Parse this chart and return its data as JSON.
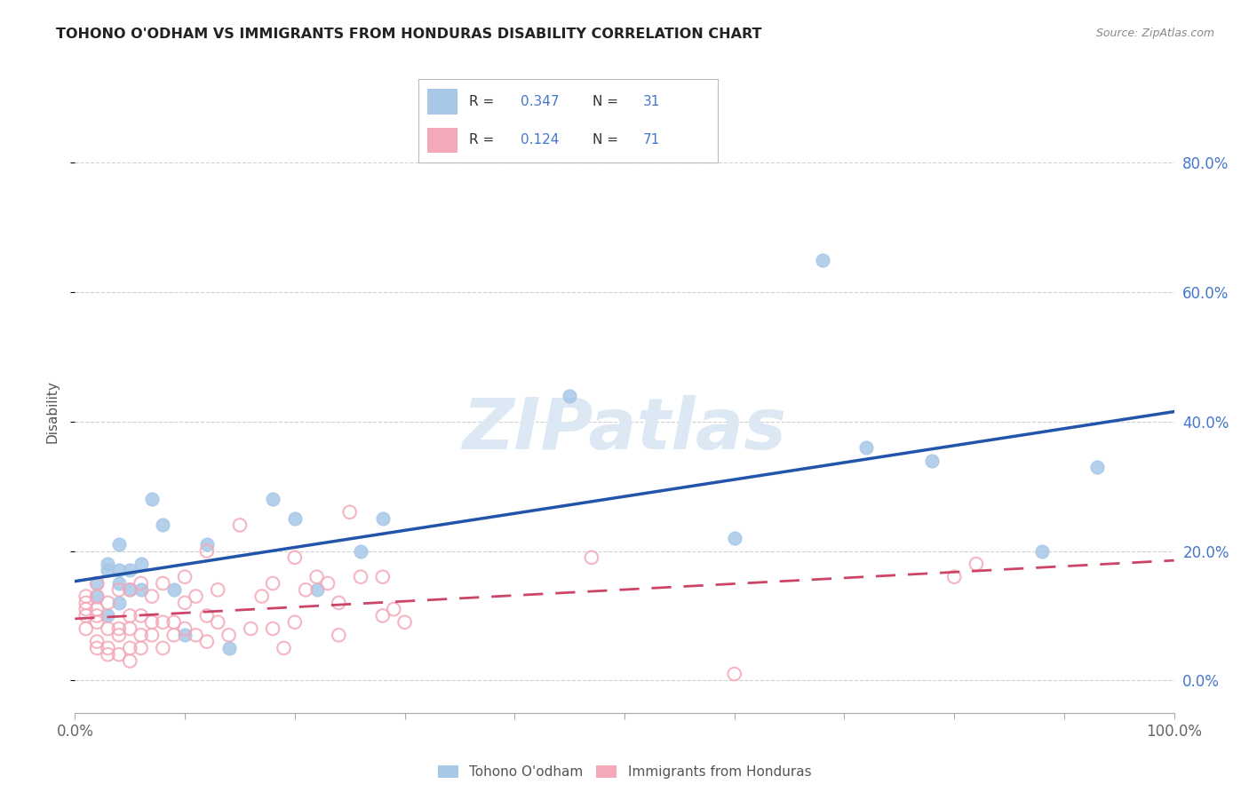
{
  "title": "TOHONO O'ODHAM VS IMMIGRANTS FROM HONDURAS DISABILITY CORRELATION CHART",
  "source": "Source: ZipAtlas.com",
  "ylabel": "Disability",
  "legend1_label": "Tohono O'odham",
  "legend2_label": "Immigrants from Honduras",
  "r1": "0.347",
  "n1": "31",
  "r2": "0.124",
  "n2": "71",
  "blue_color": "#a8c8e8",
  "blue_edge_color": "#a8c8e8",
  "pink_color": "#f4a8b8",
  "pink_edge_color": "#f4a8b8",
  "blue_line_color": "#2255aa",
  "pink_line_color": "#cc4466",
  "axis_label_color": "#4477cc",
  "watermark_color": "#dde8f5",
  "watermark": "ZIPatlas",
  "xlim": [
    0.0,
    1.0
  ],
  "ylim": [
    -0.05,
    0.88
  ],
  "blue_x": [
    0.02,
    0.02,
    0.03,
    0.03,
    0.03,
    0.04,
    0.04,
    0.04,
    0.04,
    0.05,
    0.05,
    0.06,
    0.06,
    0.07,
    0.08,
    0.09,
    0.1,
    0.12,
    0.14,
    0.18,
    0.2,
    0.22,
    0.26,
    0.28,
    0.45,
    0.6,
    0.68,
    0.72,
    0.78,
    0.88,
    0.93
  ],
  "blue_y": [
    0.13,
    0.15,
    0.1,
    0.17,
    0.18,
    0.12,
    0.15,
    0.17,
    0.21,
    0.14,
    0.17,
    0.14,
    0.18,
    0.28,
    0.24,
    0.14,
    0.07,
    0.21,
    0.05,
    0.28,
    0.25,
    0.14,
    0.2,
    0.25,
    0.44,
    0.22,
    0.65,
    0.36,
    0.34,
    0.2,
    0.33
  ],
  "pink_x": [
    0.01,
    0.01,
    0.01,
    0.01,
    0.01,
    0.02,
    0.02,
    0.02,
    0.02,
    0.02,
    0.02,
    0.02,
    0.03,
    0.03,
    0.03,
    0.03,
    0.04,
    0.04,
    0.04,
    0.04,
    0.05,
    0.05,
    0.05,
    0.05,
    0.05,
    0.06,
    0.06,
    0.06,
    0.06,
    0.07,
    0.07,
    0.07,
    0.08,
    0.08,
    0.08,
    0.09,
    0.09,
    0.1,
    0.1,
    0.1,
    0.11,
    0.11,
    0.12,
    0.12,
    0.12,
    0.13,
    0.13,
    0.14,
    0.15,
    0.16,
    0.17,
    0.18,
    0.18,
    0.19,
    0.2,
    0.2,
    0.21,
    0.22,
    0.23,
    0.24,
    0.24,
    0.25,
    0.26,
    0.28,
    0.28,
    0.29,
    0.3,
    0.47,
    0.6,
    0.8,
    0.82
  ],
  "pink_y": [
    0.08,
    0.1,
    0.11,
    0.12,
    0.13,
    0.05,
    0.06,
    0.09,
    0.1,
    0.11,
    0.13,
    0.15,
    0.04,
    0.05,
    0.08,
    0.12,
    0.04,
    0.07,
    0.08,
    0.14,
    0.03,
    0.05,
    0.08,
    0.1,
    0.14,
    0.05,
    0.07,
    0.1,
    0.15,
    0.07,
    0.09,
    0.13,
    0.05,
    0.09,
    0.15,
    0.07,
    0.09,
    0.08,
    0.12,
    0.16,
    0.07,
    0.13,
    0.06,
    0.1,
    0.2,
    0.09,
    0.14,
    0.07,
    0.24,
    0.08,
    0.13,
    0.08,
    0.15,
    0.05,
    0.09,
    0.19,
    0.14,
    0.16,
    0.15,
    0.07,
    0.12,
    0.26,
    0.16,
    0.1,
    0.16,
    0.11,
    0.09,
    0.19,
    0.01,
    0.16,
    0.18
  ],
  "yticks": [
    0.0,
    0.2,
    0.4,
    0.6,
    0.8
  ],
  "ytick_labels": [
    "0.0%",
    "20.0%",
    "40.0%",
    "60.0%",
    "80.0%"
  ],
  "xticks": [
    0.0,
    0.1,
    0.2,
    0.3,
    0.4,
    0.5,
    0.6,
    0.7,
    0.8,
    0.9,
    1.0
  ],
  "xtick_labels": [
    "0.0%",
    "",
    "",
    "",
    "",
    "",
    "",
    "",
    "",
    "",
    "100.0%"
  ],
  "background_color": "#ffffff",
  "grid_color": "#cccccc",
  "title_color": "#222222",
  "source_color": "#888888",
  "tick_color": "#666666"
}
